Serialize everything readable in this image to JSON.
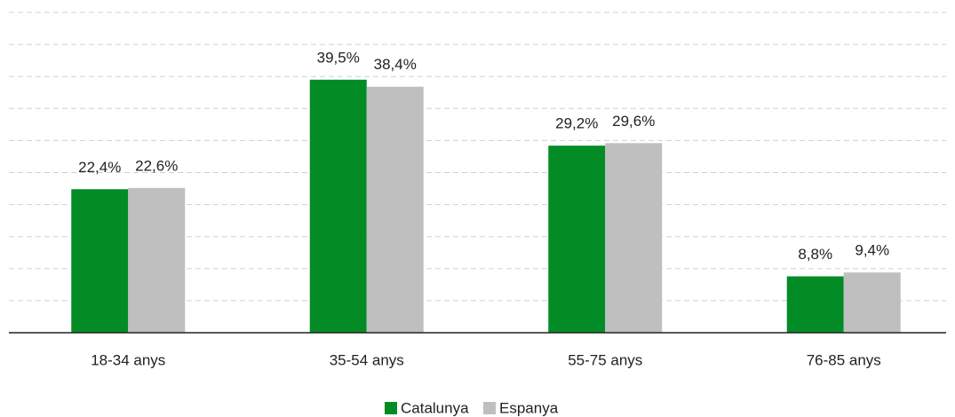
{
  "chart_data": {
    "type": "bar",
    "categories": [
      "18-34 anys",
      "35-54 anys",
      "55-75 anys",
      "76-85 anys"
    ],
    "series": [
      {
        "name": "Catalunya",
        "color": "#038c26",
        "values": [
          22.4,
          39.5,
          29.2,
          8.8
        ],
        "value_labels": [
          "22,4%",
          "39,5%",
          "29,2%",
          "8,8%"
        ]
      },
      {
        "name": "Espanya",
        "color": "#bfbfbf",
        "values": [
          22.6,
          38.4,
          29.6,
          9.4
        ],
        "value_labels": [
          "22,6%",
          "38,4%",
          "29,6%",
          "9,4%"
        ]
      }
    ],
    "ylim": [
      0,
      50
    ],
    "yticks": [
      0,
      5,
      10,
      15,
      20,
      25,
      30,
      35,
      40,
      45,
      50
    ],
    "grid": true
  }
}
